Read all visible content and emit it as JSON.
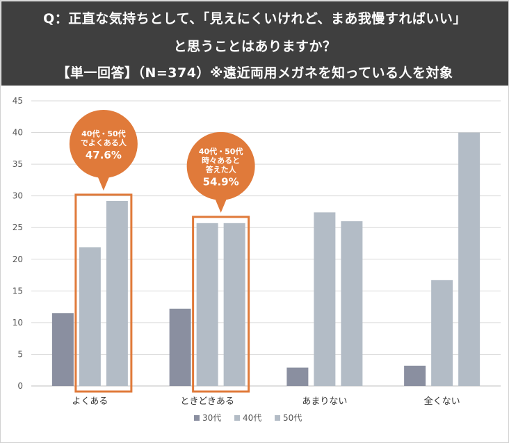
{
  "header": {
    "line1": "Q：正直な気持ちとして、「見えにくいけれど、まあ我慢すればいい」",
    "line2": "と思うことはありますか？",
    "line3": "【単一回答】（N=374）※遠近両用メガネを知っている人を対象"
  },
  "colors": {
    "header_bg": "#3f3f3f",
    "series_30": "#8a8fa0",
    "series_40": "#b3bcc6",
    "series_50": "#b3bcc6",
    "highlight": "#e07a3a",
    "grid": "#d9d9d9"
  },
  "chart_data": {
    "type": "bar",
    "categories": [
      "よくある",
      "ときどきある",
      "あまりない",
      "全くない"
    ],
    "series": [
      {
        "name": "30代",
        "values": [
          11.5,
          12.2,
          2.9,
          3.2
        ]
      },
      {
        "name": "40代",
        "values": [
          21.9,
          25.7,
          27.4,
          16.7
        ]
      },
      {
        "name": "50代",
        "values": [
          29.2,
          25.7,
          26.0,
          40.0
        ]
      }
    ],
    "ylim": [
      0,
      45
    ],
    "yticks": [
      0,
      5,
      10,
      15,
      20,
      25,
      30,
      35,
      40,
      45
    ],
    "legend_position": "bottom",
    "highlight_categories": [
      0,
      1
    ],
    "callouts": [
      {
        "category": 0,
        "lines": [
          "40代・50代",
          "でよくある人"
        ],
        "percent": "47.6%"
      },
      {
        "category": 1,
        "lines": [
          "40代・50代",
          "時々あると",
          "答えた人"
        ],
        "percent": "54.9%"
      }
    ]
  }
}
